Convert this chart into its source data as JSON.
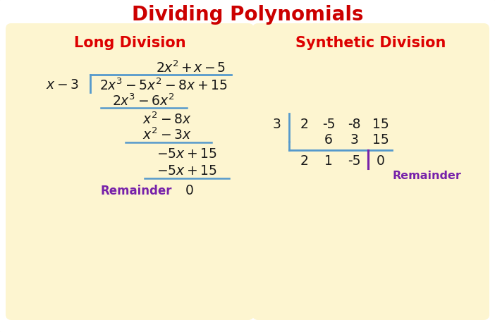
{
  "title": "Dividing Polynomials",
  "title_color": "#cc0000",
  "title_fontsize": 20,
  "bg_color": "#ffffff",
  "panel_color": "#fdf5d0",
  "left_panel_title": "Long Division",
  "right_panel_title": "Synthetic Division",
  "panel_title_color": "#dd0000",
  "panel_title_fontsize": 15,
  "math_color": "#1a1a1a",
  "blue_line_color": "#5599cc",
  "purple_color": "#7722aa",
  "math_fontsize": 14,
  "outer_border_color": "#cccccc"
}
